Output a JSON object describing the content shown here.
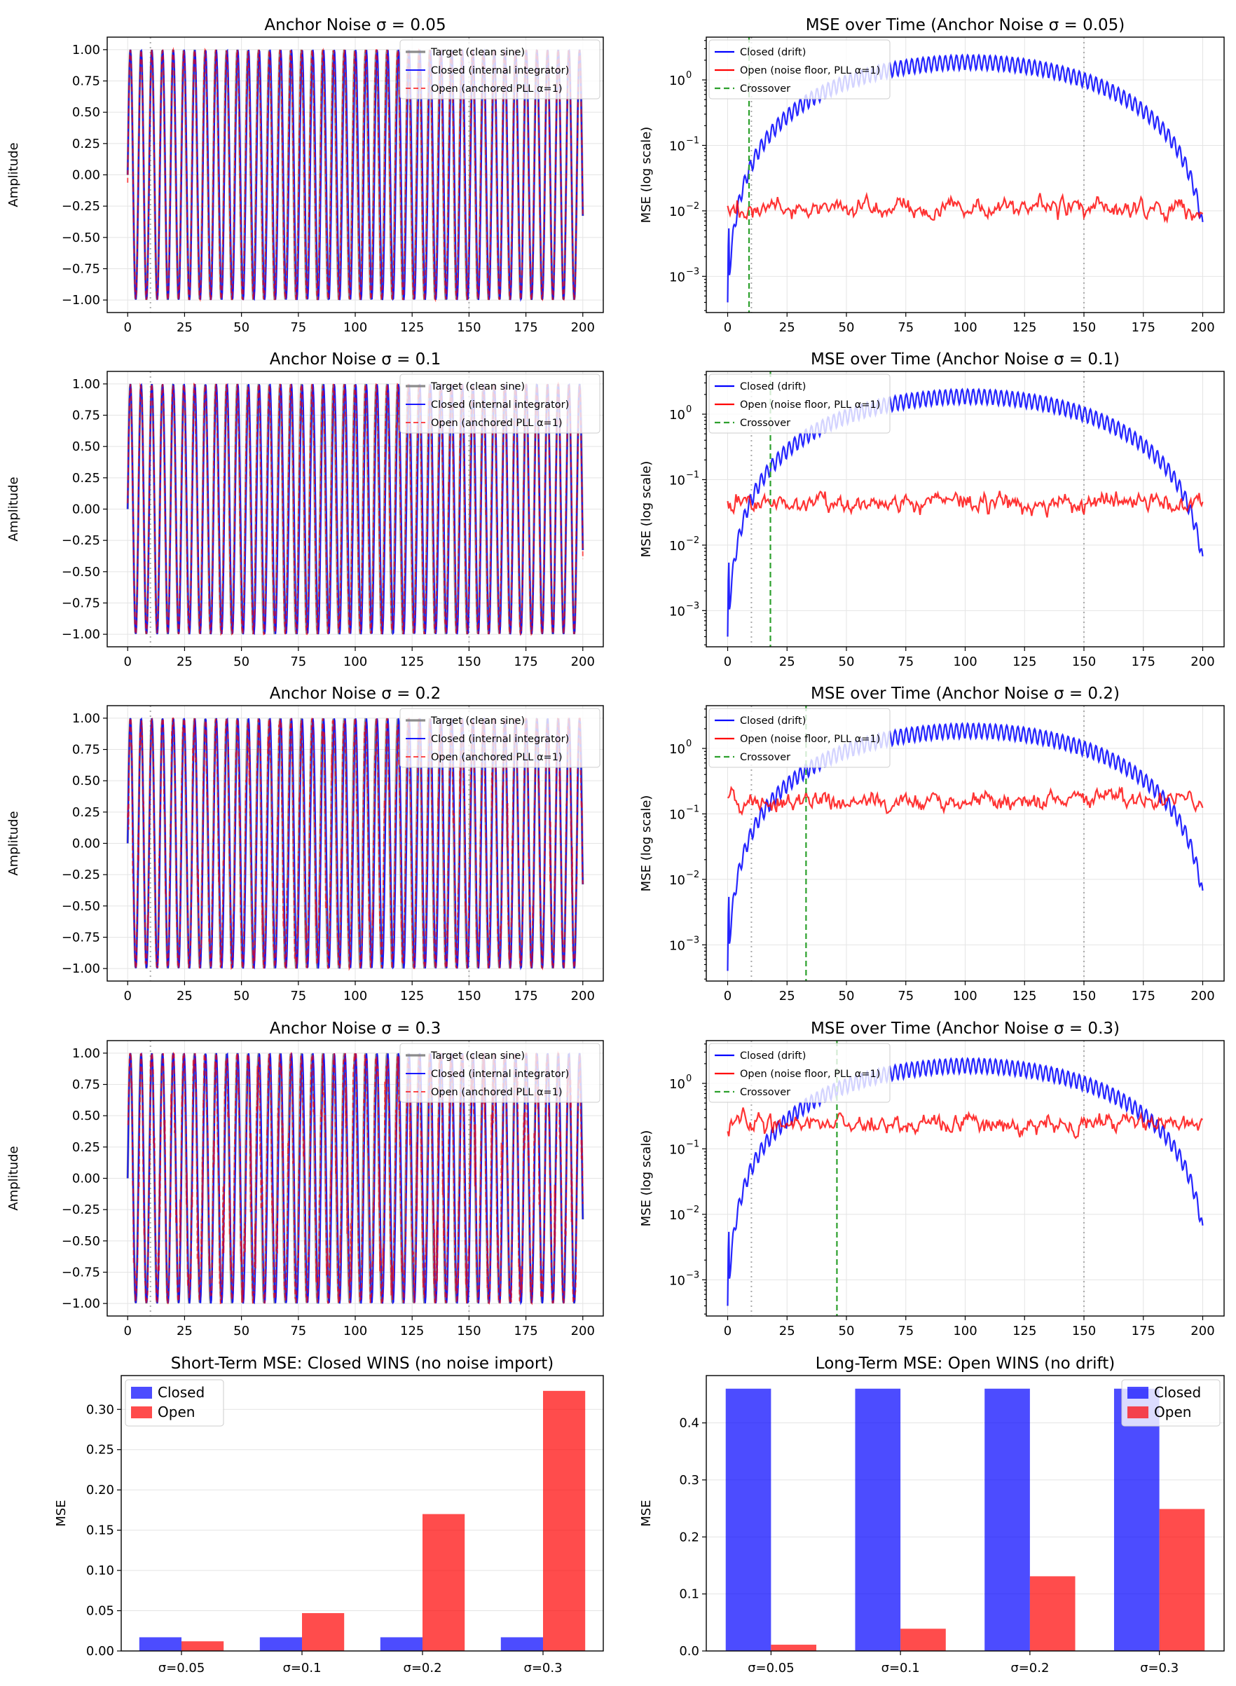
{
  "chart_data": [
    {
      "type": "line",
      "panel": "signal",
      "title": "Anchor Noise σ = 0.05",
      "ylabel": "Amplitude",
      "xlim": [
        -9,
        209
      ],
      "ylim": [
        -1.1,
        1.1
      ],
      "xticks": [
        "0",
        "25",
        "50",
        "75",
        "100",
        "125",
        "150",
        "175",
        "200"
      ],
      "xtick_values": [
        0,
        25,
        50,
        75,
        100,
        125,
        150,
        175,
        200
      ],
      "yticks": [
        "1.00",
        "0.75",
        "0.50",
        "0.25",
        "0.00",
        "−0.25",
        "−0.50",
        "−0.75",
        "−1.00"
      ],
      "ytick_values": [
        1,
        0.75,
        0.5,
        0.25,
        0,
        -0.25,
        -0.5,
        -0.75,
        -1
      ],
      "markers": [
        10,
        150
      ],
      "noise": 0.05,
      "period": 4.7,
      "legend": [
        "Target (clean sine)",
        "Closed (internal integrator)",
        "Open (anchored PLL α=1)"
      ]
    },
    {
      "type": "line",
      "panel": "mse",
      "title": "MSE over Time (Anchor Noise σ = 0.05)",
      "ylabel": "MSE (log scale)",
      "xlim": [
        -9,
        209
      ],
      "ylim": [
        0.00028,
        4.5
      ],
      "log": true,
      "xticks": [
        "0",
        "25",
        "50",
        "75",
        "100",
        "125",
        "150",
        "175",
        "200"
      ],
      "xtick_values": [
        0,
        25,
        50,
        75,
        100,
        125,
        150,
        175,
        200
      ],
      "yticks": [
        "10",
        "10",
        "10",
        "10"
      ],
      "ytick_exp": [
        "0",
        "−1",
        "−2",
        "−3"
      ],
      "ytick_values": [
        1,
        0.1,
        0.01,
        0.001
      ],
      "markers": [
        10,
        150
      ],
      "crossover": 9,
      "open_level": 0.011,
      "legend": [
        "Closed (drift)",
        "Open (noise floor, PLL α=1)",
        "Crossover"
      ]
    },
    {
      "type": "line",
      "panel": "signal",
      "title": "Anchor Noise σ = 0.1",
      "ylabel": "Amplitude",
      "xlim": [
        -9,
        209
      ],
      "ylim": [
        -1.1,
        1.1
      ],
      "xticks": [
        "0",
        "25",
        "50",
        "75",
        "100",
        "125",
        "150",
        "175",
        "200"
      ],
      "xtick_values": [
        0,
        25,
        50,
        75,
        100,
        125,
        150,
        175,
        200
      ],
      "yticks": [
        "1.00",
        "0.75",
        "0.50",
        "0.25",
        "0.00",
        "−0.25",
        "−0.50",
        "−0.75",
        "−1.00"
      ],
      "ytick_values": [
        1,
        0.75,
        0.5,
        0.25,
        0,
        -0.25,
        -0.5,
        -0.75,
        -1
      ],
      "markers": [
        10,
        150
      ],
      "noise": 0.1,
      "period": 4.7,
      "legend": [
        "Target (clean sine)",
        "Closed (internal integrator)",
        "Open (anchored PLL α=1)"
      ]
    },
    {
      "type": "line",
      "panel": "mse",
      "title": "MSE over Time (Anchor Noise σ = 0.1)",
      "ylabel": "MSE (log scale)",
      "xlim": [
        -9,
        209
      ],
      "ylim": [
        0.00028,
        4.5
      ],
      "log": true,
      "xticks": [
        "0",
        "25",
        "50",
        "75",
        "100",
        "125",
        "150",
        "175",
        "200"
      ],
      "xtick_values": [
        0,
        25,
        50,
        75,
        100,
        125,
        150,
        175,
        200
      ],
      "yticks": [
        "10",
        "10",
        "10",
        "10"
      ],
      "ytick_exp": [
        "0",
        "−1",
        "−2",
        "−3"
      ],
      "ytick_values": [
        1,
        0.1,
        0.01,
        0.001
      ],
      "markers": [
        10,
        150
      ],
      "crossover": 18,
      "open_level": 0.045,
      "legend": [
        "Closed (drift)",
        "Open (noise floor, PLL α=1)",
        "Crossover"
      ]
    },
    {
      "type": "line",
      "panel": "signal",
      "title": "Anchor Noise σ = 0.2",
      "ylabel": "Amplitude",
      "xlim": [
        -9,
        209
      ],
      "ylim": [
        -1.1,
        1.1
      ],
      "xticks": [
        "0",
        "25",
        "50",
        "75",
        "100",
        "125",
        "150",
        "175",
        "200"
      ],
      "xtick_values": [
        0,
        25,
        50,
        75,
        100,
        125,
        150,
        175,
        200
      ],
      "yticks": [
        "1.00",
        "0.75",
        "0.50",
        "0.25",
        "0.00",
        "−0.25",
        "−0.50",
        "−0.75",
        "−1.00"
      ],
      "ytick_values": [
        1,
        0.75,
        0.5,
        0.25,
        0,
        -0.25,
        -0.5,
        -0.75,
        -1
      ],
      "markers": [
        10,
        150
      ],
      "noise": 0.2,
      "period": 4.7,
      "legend": [
        "Target (clean sine)",
        "Closed (internal integrator)",
        "Open (anchored PLL α=1)"
      ]
    },
    {
      "type": "line",
      "panel": "mse",
      "title": "MSE over Time (Anchor Noise σ = 0.2)",
      "ylabel": "MSE (log scale)",
      "xlim": [
        -9,
        209
      ],
      "ylim": [
        0.00028,
        4.5
      ],
      "log": true,
      "xticks": [
        "0",
        "25",
        "50",
        "75",
        "100",
        "125",
        "150",
        "175",
        "200"
      ],
      "xtick_values": [
        0,
        25,
        50,
        75,
        100,
        125,
        150,
        175,
        200
      ],
      "yticks": [
        "10",
        "10",
        "10",
        "10"
      ],
      "ytick_exp": [
        "0",
        "−1",
        "−2",
        "−3"
      ],
      "ytick_values": [
        1,
        0.1,
        0.01,
        0.001
      ],
      "markers": [
        10,
        150
      ],
      "crossover": 33,
      "open_level": 0.16,
      "legend": [
        "Closed (drift)",
        "Open (noise floor, PLL α=1)",
        "Crossover"
      ]
    },
    {
      "type": "line",
      "panel": "signal",
      "title": "Anchor Noise σ = 0.3",
      "ylabel": "Amplitude",
      "xlim": [
        -9,
        209
      ],
      "ylim": [
        -1.1,
        1.1
      ],
      "xticks": [
        "0",
        "25",
        "50",
        "75",
        "100",
        "125",
        "150",
        "175",
        "200"
      ],
      "xtick_values": [
        0,
        25,
        50,
        75,
        100,
        125,
        150,
        175,
        200
      ],
      "yticks": [
        "1.00",
        "0.75",
        "0.50",
        "0.25",
        "0.00",
        "−0.25",
        "−0.50",
        "−0.75",
        "−1.00"
      ],
      "ytick_values": [
        1,
        0.75,
        0.5,
        0.25,
        0,
        -0.25,
        -0.5,
        -0.75,
        -1
      ],
      "markers": [
        10,
        150
      ],
      "noise": 0.3,
      "period": 4.7,
      "legend": [
        "Target (clean sine)",
        "Closed (internal integrator)",
        "Open (anchored PLL α=1)"
      ]
    },
    {
      "type": "line",
      "panel": "mse",
      "title": "MSE over Time (Anchor Noise σ = 0.3)",
      "ylabel": "MSE (log scale)",
      "xlim": [
        -9,
        209
      ],
      "ylim": [
        0.00028,
        4.5
      ],
      "log": true,
      "xticks": [
        "0",
        "25",
        "50",
        "75",
        "100",
        "125",
        "150",
        "175",
        "200"
      ],
      "xtick_values": [
        0,
        25,
        50,
        75,
        100,
        125,
        150,
        175,
        200
      ],
      "yticks": [
        "10",
        "10",
        "10",
        "10"
      ],
      "ytick_exp": [
        "0",
        "−1",
        "−2",
        "−3"
      ],
      "ytick_values": [
        1,
        0.1,
        0.01,
        0.001
      ],
      "markers": [
        10,
        150
      ],
      "crossover": 46,
      "open_level": 0.24,
      "legend": [
        "Closed (drift)",
        "Open (noise floor, PLL α=1)",
        "Crossover"
      ]
    },
    {
      "type": "bar",
      "panel": "bar",
      "title": "Short-Term MSE: Closed WINS (no noise import)",
      "ylabel": "MSE",
      "ylim": [
        0,
        0.342
      ],
      "categories": [
        "σ=0.05",
        "σ=0.1",
        "σ=0.2",
        "σ=0.3"
      ],
      "yticks": [
        "0.00",
        "0.05",
        "0.10",
        "0.15",
        "0.20",
        "0.25",
        "0.30"
      ],
      "ytick_values": [
        0,
        0.05,
        0.1,
        0.15,
        0.2,
        0.25,
        0.3
      ],
      "series": [
        {
          "name": "Closed",
          "values": [
            0.017,
            0.017,
            0.017,
            0.017
          ]
        },
        {
          "name": "Open",
          "values": [
            0.012,
            0.047,
            0.17,
            0.323
          ]
        }
      ],
      "legend_position": "top-left"
    },
    {
      "type": "bar",
      "panel": "bar",
      "title": "Long-Term MSE: Open WINS (no drift)",
      "ylabel": "MSE",
      "ylim": [
        0,
        0.483
      ],
      "categories": [
        "σ=0.05",
        "σ=0.1",
        "σ=0.2",
        "σ=0.3"
      ],
      "yticks": [
        "0.0",
        "0.1",
        "0.2",
        "0.3",
        "0.4"
      ],
      "ytick_values": [
        0,
        0.1,
        0.2,
        0.3,
        0.4
      ],
      "series": [
        {
          "name": "Closed",
          "values": [
            0.46,
            0.46,
            0.46,
            0.46
          ]
        },
        {
          "name": "Open",
          "values": [
            0.011,
            0.039,
            0.131,
            0.249
          ]
        }
      ],
      "legend_position": "top-right"
    }
  ],
  "colors": {
    "target": "#7f7f7f",
    "closed": "#0000ff",
    "open": "#ff0000",
    "crossover": "#2ca02c",
    "marker": "#aaaaaa"
  }
}
